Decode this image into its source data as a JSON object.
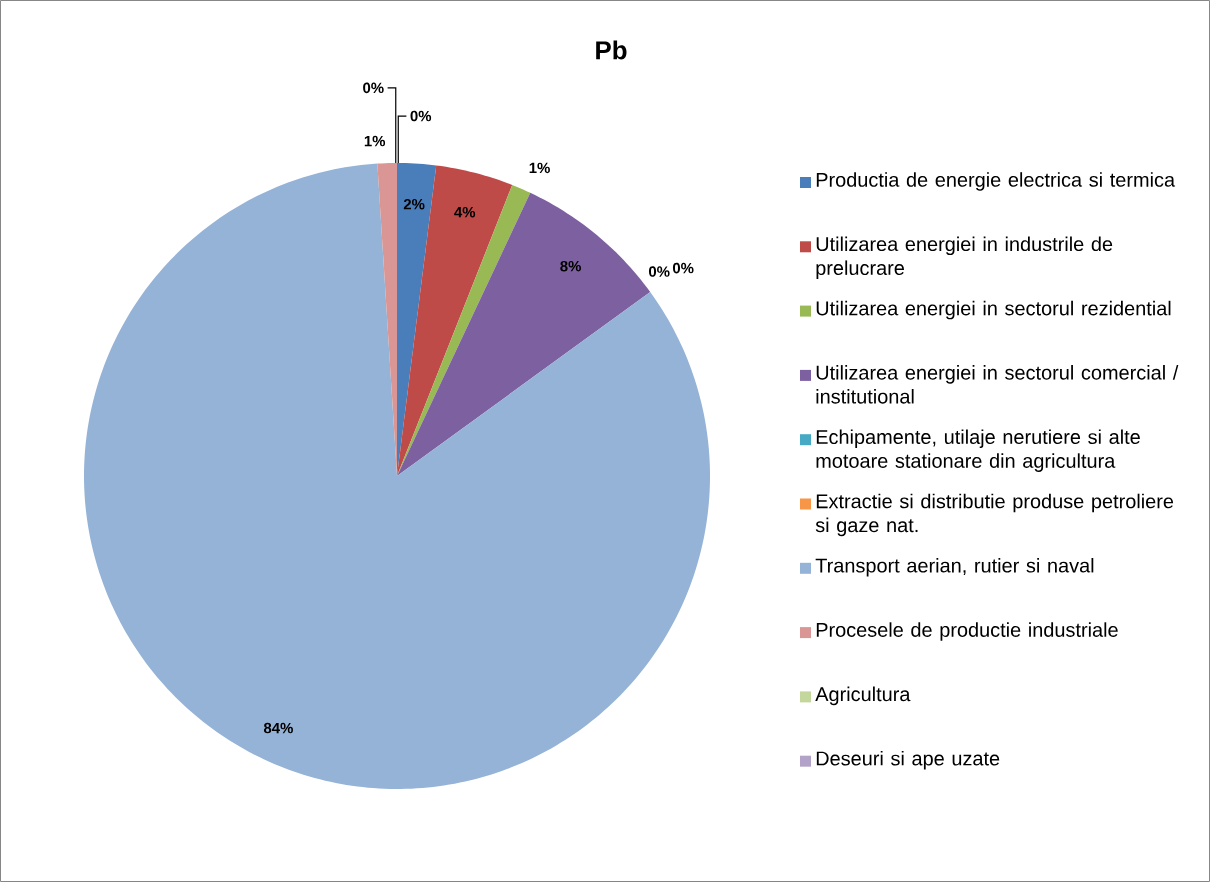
{
  "chart_data": {
    "type": "pie",
    "title": "Pb",
    "categories": [
      "Productia de energie electrica si termica",
      "Utilizarea energiei in industrile de prelucrare",
      "Utilizarea energiei in sectorul rezidential",
      "Utilizarea energiei in sectorul comercial / institutional",
      "Echipamente, utilaje nerutiere si alte motoare stationare din agricultura",
      "Extractie si distributie produse petroliere si gaze nat.",
      "Transport aerian, rutier si naval",
      "Procesele de productie industriale",
      "Agricultura",
      "Deseuri si ape uzate"
    ],
    "values": [
      2,
      4,
      1,
      8,
      0,
      0,
      84,
      1,
      0,
      0
    ],
    "value_labels": [
      "2%",
      "4%",
      "1%",
      "8%",
      "0%",
      "0%",
      "84%",
      "1%",
      "0%",
      "0%"
    ],
    "colors": [
      "#4a7ebb",
      "#be4b48",
      "#98b954",
      "#7d60a0",
      "#46aac5",
      "#f79646",
      "#95b3d7",
      "#d99694",
      "#c3d69b",
      "#b3a2c7"
    ],
    "legend": "right"
  }
}
